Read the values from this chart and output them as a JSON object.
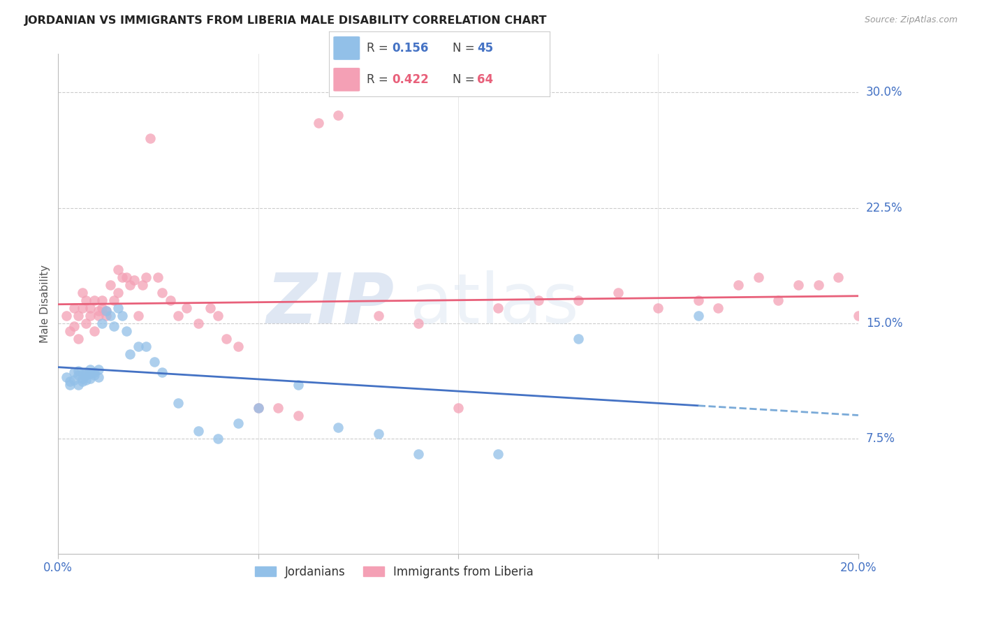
{
  "title": "JORDANIAN VS IMMIGRANTS FROM LIBERIA MALE DISABILITY CORRELATION CHART",
  "source": "Source: ZipAtlas.com",
  "ylabel": "Male Disability",
  "ytick_labels": [
    "30.0%",
    "22.5%",
    "15.0%",
    "7.5%"
  ],
  "ytick_values": [
    0.3,
    0.225,
    0.15,
    0.075
  ],
  "xmin": 0.0,
  "xmax": 0.2,
  "ymin": 0.0,
  "ymax": 0.325,
  "color_jordanian": "#92C0E8",
  "color_liberia": "#F4A0B5",
  "color_blue": "#4472C4",
  "color_pink": "#E8607A",
  "color_dashed": "#7AAAD8",
  "watermark_zip": "ZIP",
  "watermark_atlas": "atlas",
  "legend_r1": "0.156",
  "legend_n1": "45",
  "legend_r2": "0.422",
  "legend_n2": "64",
  "jordanian_x": [
    0.002,
    0.003,
    0.003,
    0.004,
    0.004,
    0.005,
    0.005,
    0.005,
    0.006,
    0.006,
    0.006,
    0.007,
    0.007,
    0.007,
    0.008,
    0.008,
    0.008,
    0.009,
    0.009,
    0.01,
    0.01,
    0.011,
    0.012,
    0.013,
    0.014,
    0.015,
    0.016,
    0.017,
    0.018,
    0.02,
    0.022,
    0.024,
    0.026,
    0.03,
    0.035,
    0.04,
    0.045,
    0.05,
    0.06,
    0.07,
    0.08,
    0.09,
    0.11,
    0.13,
    0.16
  ],
  "jordanian_y": [
    0.115,
    0.112,
    0.11,
    0.118,
    0.113,
    0.11,
    0.116,
    0.119,
    0.114,
    0.112,
    0.117,
    0.113,
    0.116,
    0.118,
    0.117,
    0.114,
    0.12,
    0.116,
    0.118,
    0.115,
    0.12,
    0.15,
    0.158,
    0.155,
    0.148,
    0.16,
    0.155,
    0.145,
    0.13,
    0.135,
    0.135,
    0.125,
    0.118,
    0.098,
    0.08,
    0.075,
    0.085,
    0.095,
    0.11,
    0.082,
    0.078,
    0.065,
    0.065,
    0.14,
    0.155
  ],
  "liberia_x": [
    0.002,
    0.003,
    0.004,
    0.004,
    0.005,
    0.005,
    0.006,
    0.006,
    0.007,
    0.007,
    0.008,
    0.008,
    0.009,
    0.009,
    0.01,
    0.01,
    0.011,
    0.011,
    0.012,
    0.012,
    0.013,
    0.014,
    0.015,
    0.015,
    0.016,
    0.017,
    0.018,
    0.019,
    0.02,
    0.021,
    0.022,
    0.023,
    0.025,
    0.026,
    0.028,
    0.03,
    0.032,
    0.035,
    0.038,
    0.04,
    0.042,
    0.045,
    0.05,
    0.055,
    0.06,
    0.065,
    0.07,
    0.08,
    0.09,
    0.1,
    0.11,
    0.12,
    0.13,
    0.14,
    0.15,
    0.16,
    0.165,
    0.17,
    0.175,
    0.18,
    0.185,
    0.19,
    0.195,
    0.2
  ],
  "liberia_y": [
    0.155,
    0.145,
    0.148,
    0.16,
    0.14,
    0.155,
    0.16,
    0.17,
    0.15,
    0.165,
    0.155,
    0.16,
    0.165,
    0.145,
    0.155,
    0.158,
    0.16,
    0.165,
    0.155,
    0.158,
    0.175,
    0.165,
    0.185,
    0.17,
    0.18,
    0.18,
    0.175,
    0.178,
    0.155,
    0.175,
    0.18,
    0.27,
    0.18,
    0.17,
    0.165,
    0.155,
    0.16,
    0.15,
    0.16,
    0.155,
    0.14,
    0.135,
    0.095,
    0.095,
    0.09,
    0.28,
    0.285,
    0.155,
    0.15,
    0.095,
    0.16,
    0.165,
    0.165,
    0.17,
    0.16,
    0.165,
    0.16,
    0.175,
    0.18,
    0.165,
    0.175,
    0.175,
    0.18,
    0.155
  ]
}
